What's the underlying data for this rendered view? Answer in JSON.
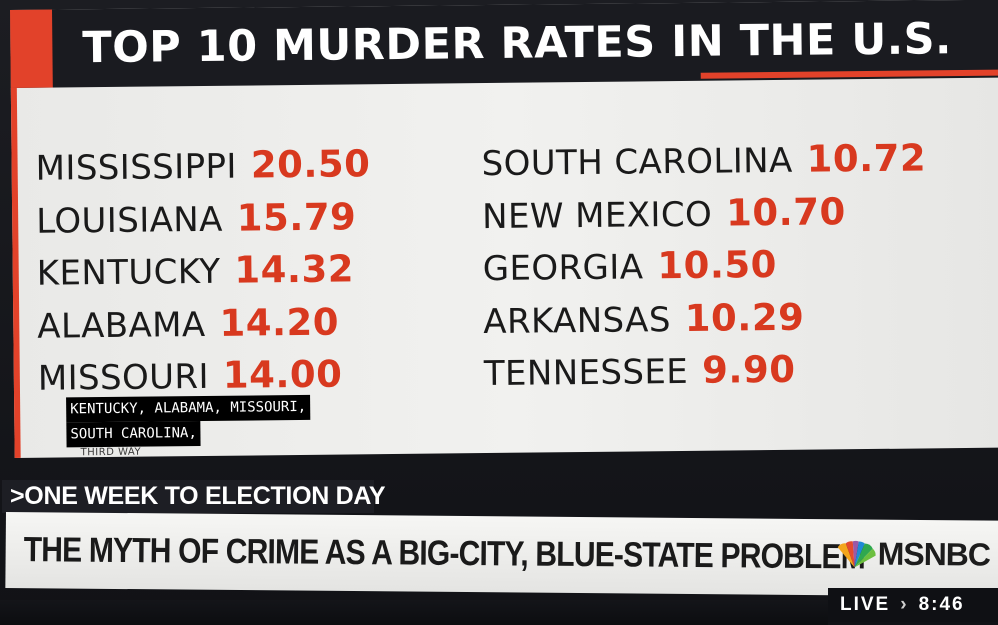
{
  "graphic": {
    "title": "TOP 10 MURDER RATES IN THE U.S.",
    "left_column": [
      {
        "state": "MISSISSIPPI",
        "rate": "20.50"
      },
      {
        "state": "LOUISIANA",
        "rate": "15.79"
      },
      {
        "state": "KENTUCKY",
        "rate": "14.32"
      },
      {
        "state": "ALABAMA",
        "rate": "14.20"
      },
      {
        "state": "MISSOURI",
        "rate": "14.00"
      }
    ],
    "right_column": [
      {
        "state": "SOUTH CAROLINA",
        "rate": "10.72"
      },
      {
        "state": "NEW MEXICO",
        "rate": "10.70"
      },
      {
        "state": "GEORGIA",
        "rate": "10.50"
      },
      {
        "state": "ARKANSAS",
        "rate": "10.29"
      },
      {
        "state": "TENNESSEE",
        "rate": "9.90"
      }
    ],
    "caption_lines": [
      "KENTUCKY, ALABAMA, MISSOURI,",
      "SOUTH CAROLINA,"
    ],
    "source": "THIRD WAY"
  },
  "lower_third": {
    "kicker": ">ONE WEEK TO ELECTION DAY",
    "headline": "THE MYTH OF CRIME AS A BIG-CITY, BLUE-STATE PROBLEM",
    "network": "MSNBC",
    "network_icon": "peacock-icon",
    "live_label": "LIVE",
    "live_separator": "›",
    "time": "8:46"
  },
  "colors": {
    "accent_red": "#e2422a",
    "rate_red": "#d8391f",
    "title_bar": "#1a1b20",
    "panel": "#eeeeec"
  }
}
